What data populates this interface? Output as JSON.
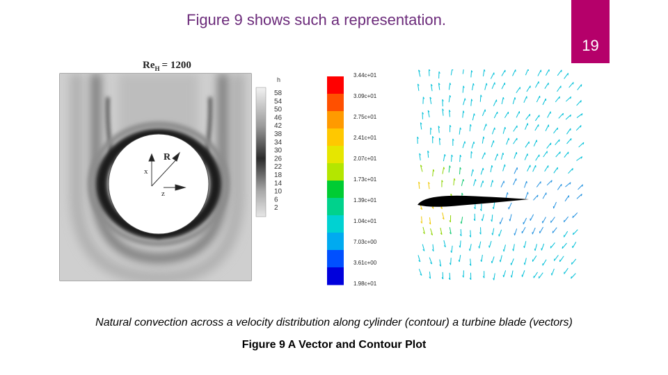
{
  "heading": "Figure 9 shows such a representation.",
  "page_number": "19",
  "contour_figure": {
    "re_label": "Re",
    "re_subscript": "H",
    "re_value": "= 1200",
    "legend_title": "h",
    "legend_values": [
      "58",
      "54",
      "50",
      "46",
      "42",
      "38",
      "34",
      "30",
      "26",
      "22",
      "18",
      "14",
      "10",
      "6",
      "2"
    ],
    "axis_x": "x",
    "axis_r": "R",
    "axis_z": "z"
  },
  "vector_figure": {
    "legend_values": [
      "3.44c+01",
      "3.09c+01",
      "2.75c+01",
      "2.41c+01",
      "2.07c+01",
      "1.73c+01",
      "1.39c+01",
      "1.04c+01",
      "7.03c+00",
      "3.61c+00",
      "1.98c+01"
    ],
    "legend_colors": [
      "#ff0000",
      "#ff5000",
      "#ff9a00",
      "#ffc800",
      "#e6e600",
      "#b4e600",
      "#00cc33",
      "#00d28c",
      "#00d2d2",
      "#00aaf0",
      "#0050ff",
      "#0000dc"
    ]
  },
  "caption": "Natural convection across a velocity distribution along cylinder (contour) a turbine blade (vectors)",
  "figure_title": "Figure 9 A Vector and Contour Plot",
  "colors": {
    "heading": "#6b2a7a",
    "page_badge": "#b5006a"
  }
}
